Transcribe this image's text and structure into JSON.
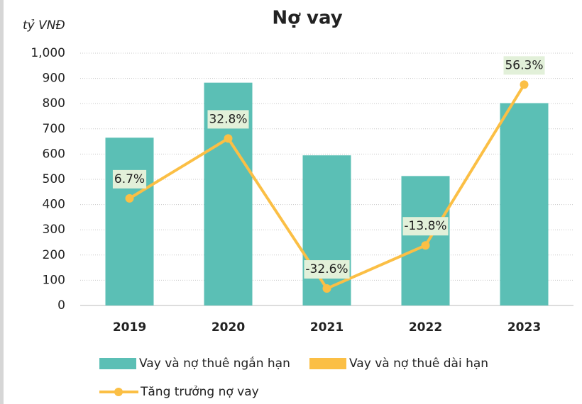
{
  "chart_data": {
    "type": "bar",
    "title": "Nợ vay",
    "y_axis_label": "tỷ VNĐ",
    "categories": [
      "2019",
      "2020",
      "2021",
      "2022",
      "2023"
    ],
    "stacked": true,
    "series": [
      {
        "name": "Vay và nợ thuê ngắn hạn",
        "color": "#5bbfb5",
        "type": "bar",
        "values": [
          665,
          883,
          595,
          513,
          802
        ]
      },
      {
        "name": "Vay và nợ thuê dài hạn",
        "color": "#fbbf45",
        "type": "bar",
        "values": [
          0,
          0,
          0,
          0,
          0
        ]
      },
      {
        "name": "Tăng trưởng nợ vay",
        "color": "#fbbf45",
        "type": "line",
        "axis": "y2",
        "values": [
          6.7,
          32.8,
          -32.6,
          -13.8,
          56.3
        ],
        "value_labels": [
          "6.7%",
          "32.8%",
          "-32.6%",
          "-13.8%",
          "56.3%"
        ]
      }
    ],
    "ylim": [
      0,
      1000
    ],
    "yticks": [
      0,
      100,
      200,
      300,
      400,
      500,
      600,
      700,
      800,
      900,
      {
        "value": 1000,
        "label": "1,000"
      }
    ],
    "y2lim": [
      -40,
      70
    ],
    "grid": true,
    "legend": "bottom"
  }
}
